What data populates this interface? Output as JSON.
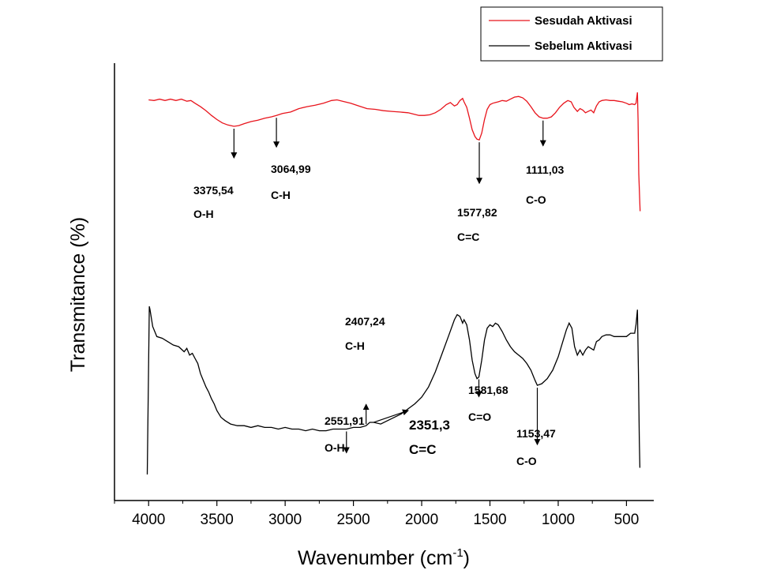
{
  "chart_data": {
    "type": "line",
    "xlabel": "Wavenumber (cm",
    "xlabel_sup": "-1",
    "xlabel_end": ")",
    "ylabel": "Transmitance (%)",
    "xlim": [
      4250,
      300
    ],
    "x_reversed": true,
    "y_ticks_shown": false,
    "x_ticks": [
      4000,
      3500,
      3000,
      2500,
      2000,
      1500,
      1000,
      500
    ],
    "legend": {
      "placement": "top-right"
    },
    "series": [
      {
        "name": "Sesudah Aktivasi",
        "color": "#e8141c",
        "points": [
          [
            4000,
            89
          ],
          [
            3960,
            88
          ],
          [
            3920,
            90
          ],
          [
            3880,
            88
          ],
          [
            3840,
            90
          ],
          [
            3800,
            88
          ],
          [
            3760,
            90
          ],
          [
            3720,
            87
          ],
          [
            3690,
            88
          ],
          [
            3660,
            84
          ],
          [
            3620,
            79
          ],
          [
            3580,
            73
          ],
          [
            3540,
            66
          ],
          [
            3500,
            60
          ],
          [
            3460,
            55
          ],
          [
            3420,
            52
          ],
          [
            3375,
            50
          ],
          [
            3340,
            51
          ],
          [
            3300,
            54
          ],
          [
            3250,
            57
          ],
          [
            3200,
            59
          ],
          [
            3150,
            62
          ],
          [
            3100,
            64
          ],
          [
            3064,
            66
          ],
          [
            3020,
            69
          ],
          [
            2960,
            71
          ],
          [
            2900,
            76
          ],
          [
            2840,
            79
          ],
          [
            2780,
            81
          ],
          [
            2720,
            84
          ],
          [
            2660,
            88
          ],
          [
            2620,
            89
          ],
          [
            2580,
            87
          ],
          [
            2520,
            84
          ],
          [
            2460,
            80
          ],
          [
            2400,
            76
          ],
          [
            2340,
            75
          ],
          [
            2280,
            73
          ],
          [
            2220,
            72
          ],
          [
            2160,
            71
          ],
          [
            2100,
            70
          ],
          [
            2060,
            68
          ],
          [
            2020,
            66
          ],
          [
            1980,
            66
          ],
          [
            1940,
            67
          ],
          [
            1900,
            70
          ],
          [
            1860,
            75
          ],
          [
            1820,
            82
          ],
          [
            1790,
            85
          ],
          [
            1760,
            80
          ],
          [
            1740,
            82
          ],
          [
            1720,
            88
          ],
          [
            1700,
            91
          ],
          [
            1690,
            86
          ],
          [
            1670,
            78
          ],
          [
            1650,
            62
          ],
          [
            1630,
            45
          ],
          [
            1610,
            35
          ],
          [
            1595,
            31
          ],
          [
            1578,
            30
          ],
          [
            1560,
            40
          ],
          [
            1540,
            60
          ],
          [
            1520,
            75
          ],
          [
            1500,
            82
          ],
          [
            1480,
            84
          ],
          [
            1460,
            85
          ],
          [
            1440,
            86
          ],
          [
            1410,
            88
          ],
          [
            1380,
            87
          ],
          [
            1350,
            90
          ],
          [
            1320,
            93
          ],
          [
            1290,
            94
          ],
          [
            1260,
            92
          ],
          [
            1230,
            87
          ],
          [
            1200,
            79
          ],
          [
            1170,
            70
          ],
          [
            1140,
            64
          ],
          [
            1111,
            62
          ],
          [
            1080,
            62
          ],
          [
            1050,
            64
          ],
          [
            1020,
            70
          ],
          [
            990,
            78
          ],
          [
            960,
            84
          ],
          [
            930,
            88
          ],
          [
            905,
            86
          ],
          [
            885,
            78
          ],
          [
            860,
            72
          ],
          [
            840,
            76
          ],
          [
            820,
            74
          ],
          [
            800,
            70
          ],
          [
            780,
            72
          ],
          [
            760,
            74
          ],
          [
            740,
            70
          ],
          [
            720,
            80
          ],
          [
            700,
            86
          ],
          [
            680,
            88
          ],
          [
            650,
            89
          ],
          [
            620,
            88
          ],
          [
            590,
            88
          ],
          [
            560,
            87
          ],
          [
            530,
            86
          ],
          [
            500,
            84
          ],
          [
            480,
            82
          ],
          [
            460,
            83
          ],
          [
            440,
            82
          ],
          [
            430,
            84
          ],
          [
            420,
            100
          ],
          [
            415,
            60
          ],
          [
            410,
            -20
          ],
          [
            400,
            -75
          ]
        ]
      },
      {
        "name": "Sebelum Aktivasi",
        "color": "#000000",
        "points": [
          [
            4010,
            0
          ],
          [
            3995,
            100
          ],
          [
            3990,
            98
          ],
          [
            3970,
            88
          ],
          [
            3940,
            82
          ],
          [
            3900,
            81
          ],
          [
            3860,
            79
          ],
          [
            3820,
            77
          ],
          [
            3780,
            76
          ],
          [
            3740,
            73
          ],
          [
            3720,
            75
          ],
          [
            3700,
            71
          ],
          [
            3680,
            72
          ],
          [
            3660,
            69
          ],
          [
            3640,
            66
          ],
          [
            3620,
            60
          ],
          [
            3600,
            56
          ],
          [
            3580,
            52
          ],
          [
            3560,
            49
          ],
          [
            3540,
            45
          ],
          [
            3520,
            42
          ],
          [
            3500,
            38
          ],
          [
            3470,
            34
          ],
          [
            3440,
            32
          ],
          [
            3400,
            30
          ],
          [
            3350,
            29
          ],
          [
            3300,
            29
          ],
          [
            3250,
            28
          ],
          [
            3200,
            29
          ],
          [
            3150,
            28
          ],
          [
            3100,
            28
          ],
          [
            3050,
            27
          ],
          [
            3000,
            28
          ],
          [
            2950,
            27
          ],
          [
            2900,
            27
          ],
          [
            2850,
            26
          ],
          [
            2800,
            27
          ],
          [
            2750,
            26
          ],
          [
            2700,
            26
          ],
          [
            2650,
            27
          ],
          [
            2600,
            27
          ],
          [
            2551,
            27
          ],
          [
            2500,
            28
          ],
          [
            2450,
            28
          ],
          [
            2407,
            29
          ],
          [
            2380,
            31
          ],
          [
            2351,
            31
          ],
          [
            2300,
            30
          ],
          [
            2250,
            32
          ],
          [
            2200,
            34
          ],
          [
            2150,
            36
          ],
          [
            2100,
            39
          ],
          [
            2050,
            42
          ],
          [
            2000,
            46
          ],
          [
            1950,
            52
          ],
          [
            1900,
            61
          ],
          [
            1850,
            72
          ],
          [
            1800,
            83
          ],
          [
            1760,
            92
          ],
          [
            1740,
            95
          ],
          [
            1720,
            94
          ],
          [
            1700,
            90
          ],
          [
            1690,
            92
          ],
          [
            1670,
            89
          ],
          [
            1650,
            80
          ],
          [
            1630,
            68
          ],
          [
            1610,
            60
          ],
          [
            1595,
            57
          ],
          [
            1581,
            58
          ],
          [
            1560,
            68
          ],
          [
            1540,
            80
          ],
          [
            1520,
            87
          ],
          [
            1500,
            89
          ],
          [
            1480,
            88
          ],
          [
            1460,
            90
          ],
          [
            1440,
            89
          ],
          [
            1410,
            85
          ],
          [
            1380,
            80
          ],
          [
            1350,
            76
          ],
          [
            1320,
            73
          ],
          [
            1290,
            71
          ],
          [
            1260,
            69
          ],
          [
            1230,
            66
          ],
          [
            1200,
            62
          ],
          [
            1170,
            56
          ],
          [
            1153,
            53
          ],
          [
            1120,
            54
          ],
          [
            1080,
            57
          ],
          [
            1040,
            62
          ],
          [
            1000,
            70
          ],
          [
            970,
            78
          ],
          [
            940,
            86
          ],
          [
            920,
            90
          ],
          [
            900,
            87
          ],
          [
            880,
            76
          ],
          [
            860,
            71
          ],
          [
            840,
            74
          ],
          [
            820,
            71
          ],
          [
            800,
            74
          ],
          [
            780,
            76
          ],
          [
            760,
            75
          ],
          [
            740,
            74
          ],
          [
            720,
            79
          ],
          [
            700,
            80
          ],
          [
            680,
            82
          ],
          [
            650,
            83
          ],
          [
            620,
            83
          ],
          [
            590,
            82
          ],
          [
            560,
            82
          ],
          [
            530,
            82
          ],
          [
            500,
            82
          ],
          [
            470,
            84
          ],
          [
            440,
            84
          ],
          [
            430,
            89
          ],
          [
            420,
            98
          ],
          [
            412,
            60
          ],
          [
            406,
            20
          ],
          [
            402,
            4
          ]
        ]
      }
    ],
    "annotations": [
      {
        "wavenumber": "3375,54",
        "group": "O-H",
        "series": "Sesudah Aktivasi",
        "x": 3375
      },
      {
        "wavenumber": "3064,99",
        "group": "C-H",
        "series": "Sesudah Aktivasi",
        "x": 3064
      },
      {
        "wavenumber": "1577,82",
        "group": "C=C",
        "series": "Sesudah Aktivasi",
        "x": 1578
      },
      {
        "wavenumber": "1111,03",
        "group": "C-O",
        "series": "Sesudah Aktivasi",
        "x": 1111
      },
      {
        "wavenumber": "2407,24",
        "group": "C-H",
        "series": "Sebelum Aktivasi",
        "x": 2407
      },
      {
        "wavenumber": "2551,91",
        "group": "O-H",
        "series": "Sebelum Aktivasi",
        "x": 2551
      },
      {
        "wavenumber": "2351,3",
        "group": "C=C",
        "series": "Sebelum Aktivasi",
        "x": 2351
      },
      {
        "wavenumber": "1581,68",
        "group": "C=O",
        "series": "Sebelum Aktivasi",
        "x": 1581
      },
      {
        "wavenumber": "1153,47",
        "group": "C-O",
        "series": "Sebelum Aktivasi",
        "x": 1153
      }
    ]
  }
}
